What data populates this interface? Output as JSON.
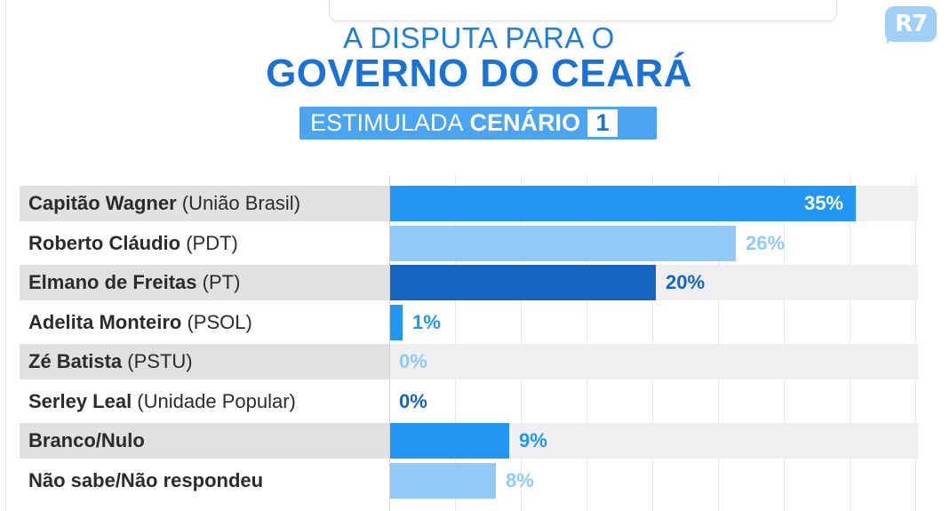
{
  "header": {
    "title_line1": "A DISPUTA PARA O",
    "title_line2": "GOVERNO DO CEARÁ",
    "badge_text": "ESTIMULADA",
    "badge_bold": "CENÁRIO",
    "badge_number": "1",
    "logo_text": "R7"
  },
  "colors": {
    "blue_mid": "#2196f3",
    "blue_light": "#90caf9",
    "blue_dark": "#1565c0",
    "text_light": "#90caf9",
    "text_mid": "#2196f3",
    "text_dark": "#1565c0"
  },
  "chart_data": {
    "type": "bar",
    "orientation": "horizontal",
    "xlim": [
      0,
      40
    ],
    "grid": true,
    "rows": [
      {
        "name": "Capitão Wagner",
        "party": "(União Brasil)",
        "value": 35,
        "label": "35%",
        "color": "mid"
      },
      {
        "name": "Roberto Cláudio",
        "party": "(PDT)",
        "value": 26,
        "label": "26%",
        "color": "light"
      },
      {
        "name": "Elmano de Freitas",
        "party": "(PT)",
        "value": 20,
        "label": "20%",
        "color": "dark"
      },
      {
        "name": "Adelita Monteiro",
        "party": "(PSOL)",
        "value": 1,
        "label": "1%",
        "color": "mid"
      },
      {
        "name": "Zé Batista",
        "party": "(PSTU)",
        "value": 0,
        "label": "0%",
        "color": "light"
      },
      {
        "name": "Serley Leal",
        "party": "(Unidade Popular)",
        "value": 0,
        "label": "0%",
        "color": "dark"
      },
      {
        "name": "Branco/Nulo",
        "party": "",
        "value": 9,
        "label": "9%",
        "color": "mid"
      },
      {
        "name": "Não sabe/Não respondeu",
        "party": "",
        "value": 8,
        "label": "8%",
        "color": "light"
      }
    ]
  }
}
